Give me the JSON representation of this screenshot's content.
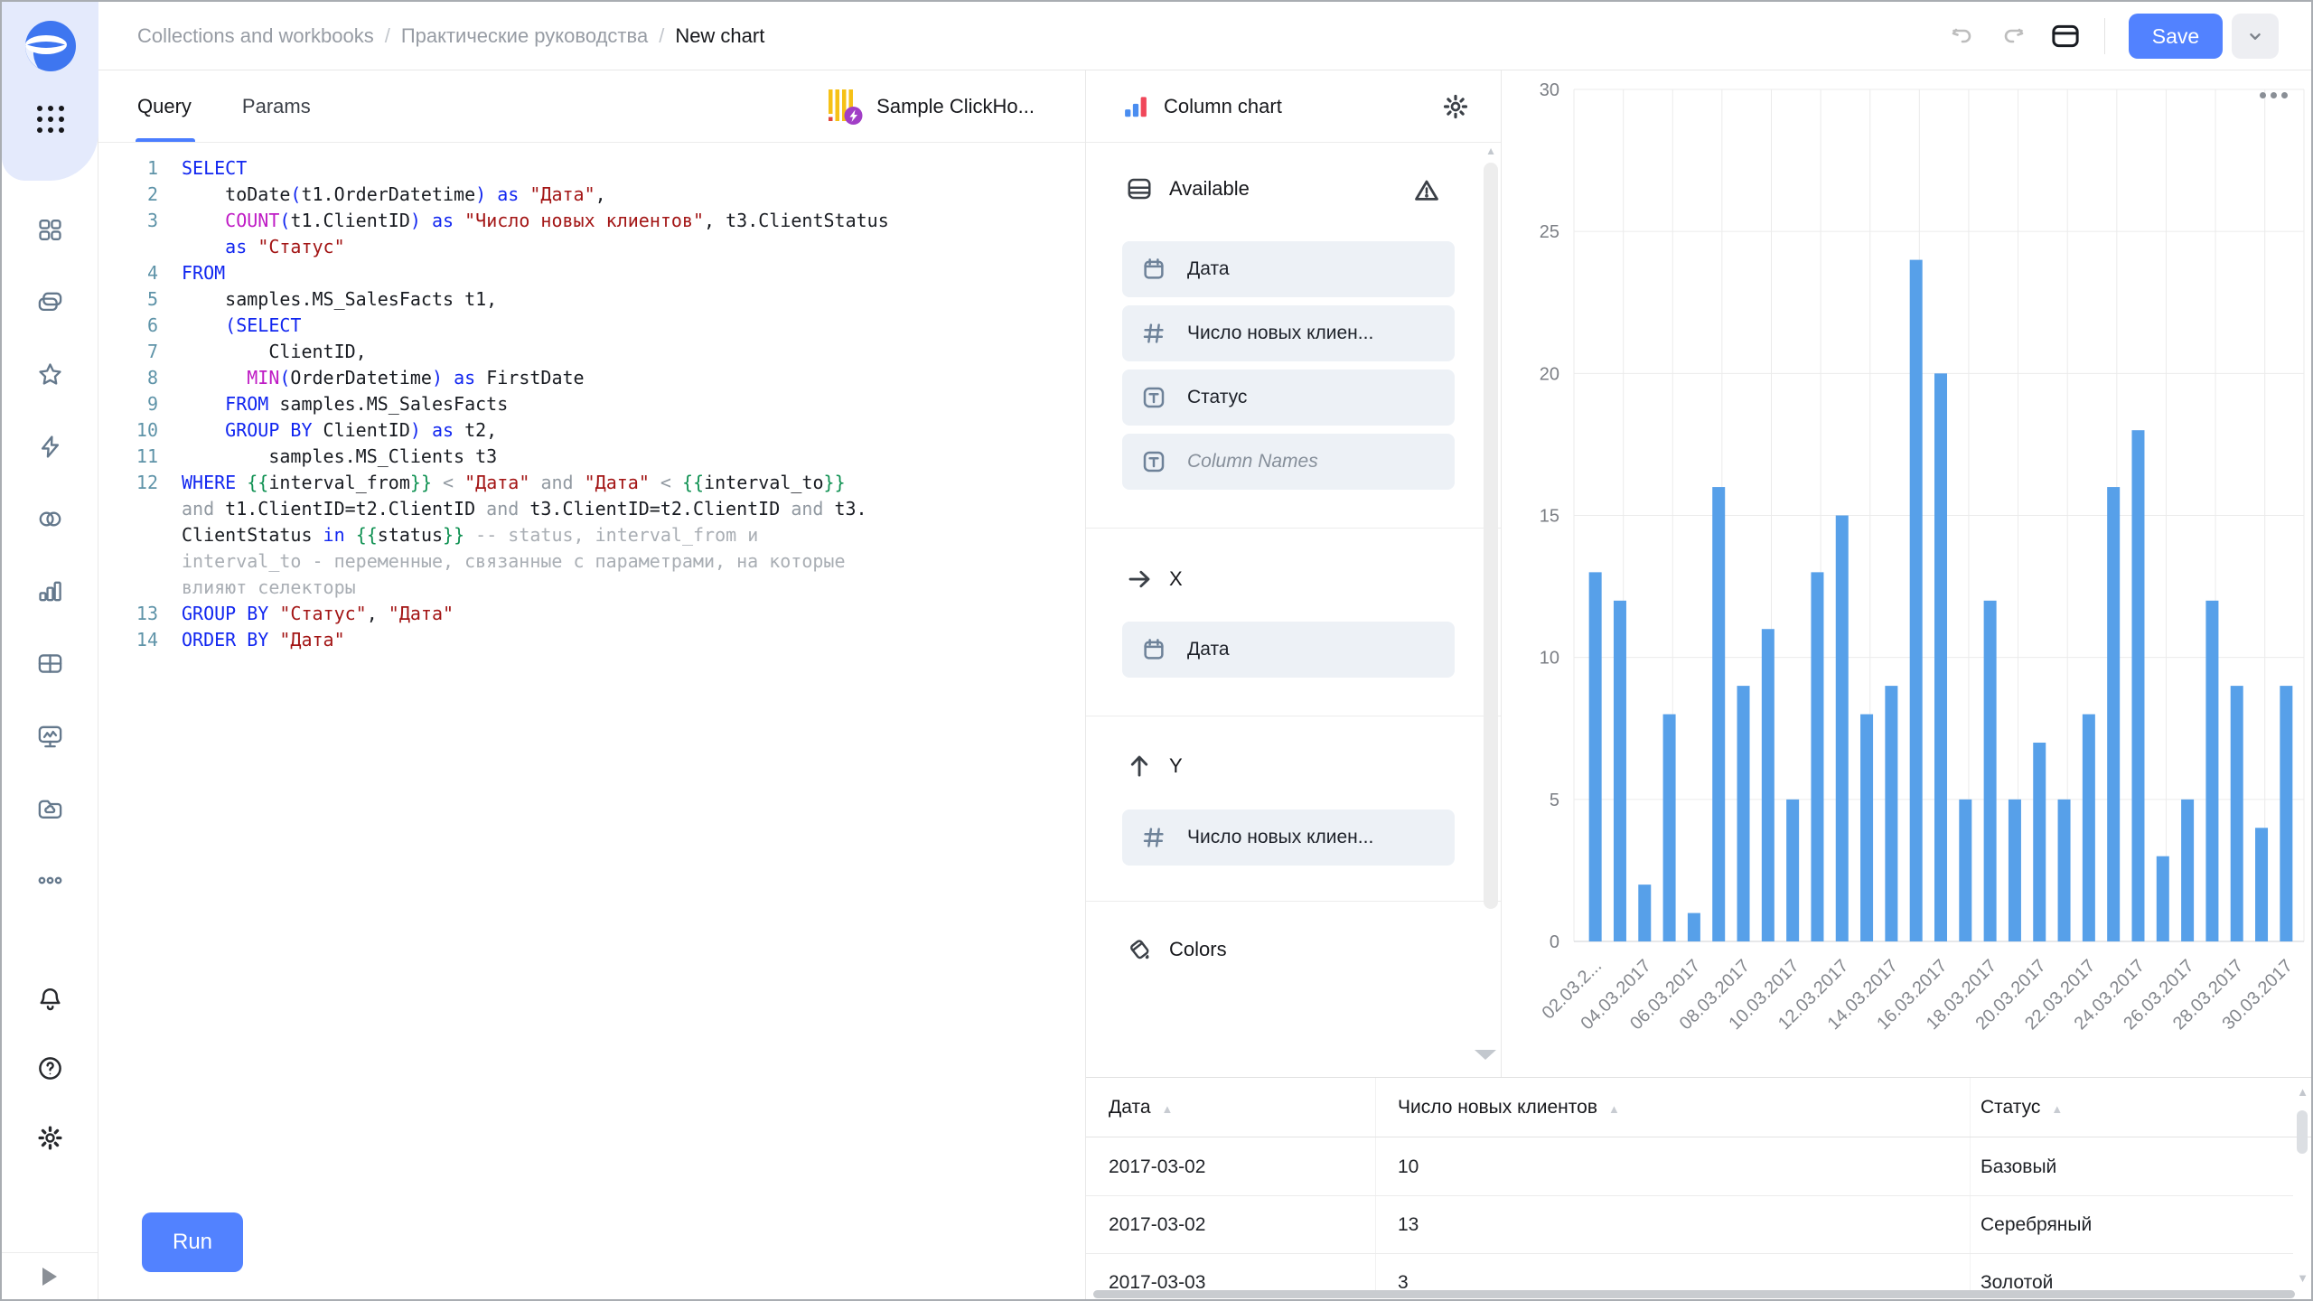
{
  "header": {
    "breadcrumb": [
      "Collections and workbooks",
      "Практические руководства",
      "New chart"
    ],
    "separator": "/",
    "save_label": "Save"
  },
  "sidebar": {
    "icons": [
      "datalens-logo",
      "app-grid",
      "tiles",
      "collections",
      "favorites",
      "connections",
      "datasets",
      "charts",
      "tables",
      "dashboards",
      "storage",
      "more",
      "notifications",
      "help",
      "settings",
      "expand"
    ]
  },
  "query_panel": {
    "tabs": {
      "query": "Query",
      "params": "Params"
    },
    "dataset_label": "Sample ClickHo...",
    "run_label": "Run"
  },
  "editor": {
    "rows": [
      {
        "n": "1",
        "s": [
          {
            "t": "SELECT",
            "c": "kw"
          }
        ]
      },
      {
        "n": "2",
        "s": [
          {
            "t": "    "
          },
          {
            "t": "toDate"
          },
          {
            "t": "(",
            "c": "pr"
          },
          {
            "t": "t1.OrderDatetime"
          },
          {
            "t": ")",
            "c": "pr"
          },
          {
            "t": " "
          },
          {
            "t": "as",
            "c": "kw"
          },
          {
            "t": " "
          },
          {
            "t": "\"Дата\"",
            "c": "st"
          },
          {
            "t": ","
          }
        ]
      },
      {
        "n": "3",
        "s": [
          {
            "t": "    "
          },
          {
            "t": "COUNT",
            "c": "fn"
          },
          {
            "t": "(",
            "c": "pr"
          },
          {
            "t": "t1.ClientID",
            "c": ""
          },
          {
            "t": ")",
            "c": "pr"
          },
          {
            "t": " "
          },
          {
            "t": "as",
            "c": "kw"
          },
          {
            "t": " "
          },
          {
            "t": "\"Число новых клиентов\"",
            "c": "st"
          },
          {
            "t": ", t3.ClientStatus"
          }
        ]
      },
      {
        "n": "",
        "s": [
          {
            "t": "    "
          },
          {
            "t": "as",
            "c": "kw"
          },
          {
            "t": " "
          },
          {
            "t": "\"Статус\"",
            "c": "st"
          }
        ]
      },
      {
        "n": "4",
        "s": [
          {
            "t": "FROM",
            "c": "kw"
          }
        ]
      },
      {
        "n": "5",
        "s": [
          {
            "t": "    samples.MS_SalesFacts t1,"
          }
        ]
      },
      {
        "n": "6",
        "s": [
          {
            "t": "    "
          },
          {
            "t": "(",
            "c": "pr"
          },
          {
            "t": "SELECT",
            "c": "kw"
          }
        ]
      },
      {
        "n": "7",
        "s": [
          {
            "t": "        ClientID,"
          }
        ]
      },
      {
        "n": "8",
        "s": [
          {
            "t": "      "
          },
          {
            "t": "MIN",
            "c": "fn"
          },
          {
            "t": "(",
            "c": "pr"
          },
          {
            "t": "OrderDatetime"
          },
          {
            "t": ")",
            "c": "pr"
          },
          {
            "t": " "
          },
          {
            "t": "as",
            "c": "kw"
          },
          {
            "t": " FirstDate"
          }
        ]
      },
      {
        "n": "9",
        "s": [
          {
            "t": "    "
          },
          {
            "t": "FROM",
            "c": "kw"
          },
          {
            "t": " samples.MS_SalesFacts"
          }
        ]
      },
      {
        "n": "10",
        "s": [
          {
            "t": "    "
          },
          {
            "t": "GROUP BY",
            "c": "kw"
          },
          {
            "t": " ClientID"
          },
          {
            "t": ")",
            "c": "pr"
          },
          {
            "t": " "
          },
          {
            "t": "as",
            "c": "kw"
          },
          {
            "t": " t2,"
          }
        ]
      },
      {
        "n": "11",
        "s": [
          {
            "t": "        samples.MS_Clients t3"
          }
        ]
      },
      {
        "n": "12",
        "s": [
          {
            "t": "WHERE",
            "c": "kw"
          },
          {
            "t": " "
          },
          {
            "t": "{{",
            "c": "br"
          },
          {
            "t": "interval_from"
          },
          {
            "t": "}}",
            "c": "br"
          },
          {
            "t": " "
          },
          {
            "t": "<",
            "c": "op"
          },
          {
            "t": " "
          },
          {
            "t": "\"Дата\"",
            "c": "st"
          },
          {
            "t": " "
          },
          {
            "t": "and",
            "c": "op"
          },
          {
            "t": " "
          },
          {
            "t": "\"Дата\"",
            "c": "st"
          },
          {
            "t": " "
          },
          {
            "t": "<",
            "c": "op"
          },
          {
            "t": " "
          },
          {
            "t": "{{",
            "c": "br"
          },
          {
            "t": "interval_to"
          },
          {
            "t": "}}",
            "c": "br"
          }
        ]
      },
      {
        "n": "",
        "s": [
          {
            "t": "and",
            "c": "op"
          },
          {
            "t": " t1.ClientID=t2.ClientID "
          },
          {
            "t": "and",
            "c": "op"
          },
          {
            "t": " t3.ClientID=t2.ClientID "
          },
          {
            "t": "and",
            "c": "op"
          },
          {
            "t": " t3."
          }
        ]
      },
      {
        "n": "",
        "s": [
          {
            "t": "ClientStatus "
          },
          {
            "t": "in",
            "c": "kw"
          },
          {
            "t": " "
          },
          {
            "t": "{{",
            "c": "br"
          },
          {
            "t": "status"
          },
          {
            "t": "}}",
            "c": "br"
          },
          {
            "t": " "
          },
          {
            "t": "-- status, interval_from и",
            "c": "cm"
          }
        ]
      },
      {
        "n": "",
        "s": [
          {
            "t": "interval_to - переменные, связанные с параметрами, на которые",
            "c": "cm"
          }
        ]
      },
      {
        "n": "",
        "s": [
          {
            "t": "влияют селекторы",
            "c": "cm"
          }
        ]
      },
      {
        "n": "13",
        "s": [
          {
            "t": "GROUP BY",
            "c": "kw"
          },
          {
            "t": " "
          },
          {
            "t": "\"Статус\"",
            "c": "st"
          },
          {
            "t": ", "
          },
          {
            "t": "\"Дата\"",
            "c": "st"
          }
        ]
      },
      {
        "n": "14",
        "s": [
          {
            "t": "ORDER BY",
            "c": "kw"
          },
          {
            "t": " "
          },
          {
            "t": "\"Дата\"",
            "c": "st"
          }
        ]
      }
    ]
  },
  "settings": {
    "title": "Column chart",
    "available": {
      "label": "Available",
      "fields": [
        {
          "label": "Дата",
          "type": "date"
        },
        {
          "label": "Число новых клиен...",
          "type": "number"
        },
        {
          "label": "Статус",
          "type": "string"
        },
        {
          "label": "Column Names",
          "type": "string",
          "placeholder": true
        }
      ]
    },
    "x": {
      "label": "X",
      "field": "Дата"
    },
    "y": {
      "label": "Y",
      "field": "Число новых клиен..."
    },
    "colors": {
      "label": "Colors"
    }
  },
  "chart_data": {
    "type": "bar",
    "title": "",
    "xlabel": "",
    "ylabel": "",
    "x": [
      "02.03.2017",
      "03.03.2017",
      "04.03.2017",
      "05.03.2017",
      "06.03.2017",
      "07.03.2017",
      "08.03.2017",
      "09.03.2017",
      "10.03.2017",
      "11.03.2017",
      "12.03.2017",
      "13.03.2017",
      "14.03.2017",
      "15.03.2017",
      "16.03.2017",
      "17.03.2017",
      "18.03.2017",
      "19.03.2017",
      "20.03.2017",
      "21.03.2017",
      "22.03.2017",
      "23.03.2017",
      "24.03.2017",
      "25.03.2017",
      "26.03.2017",
      "27.03.2017",
      "28.03.2017",
      "29.03.2017",
      "30.03.2017"
    ],
    "values": [
      13,
      12,
      2,
      8,
      1,
      16,
      9,
      11,
      5,
      13,
      15,
      8,
      9,
      24,
      20,
      5,
      12,
      5,
      7,
      5,
      8,
      16,
      18,
      3,
      5,
      12,
      9,
      4,
      9
    ],
    "ylim": [
      0,
      30
    ],
    "yticks": [
      0,
      5,
      10,
      15,
      20,
      25,
      30
    ],
    "x_tick_labels": [
      "02.03.2...",
      "04.03.2017",
      "06.03.2017",
      "08.03.2017",
      "10.03.2017",
      "12.03.2017",
      "14.03.2017",
      "16.03.2017",
      "18.03.2017",
      "20.03.2017",
      "22.03.2017",
      "24.03.2017",
      "26.03.2017",
      "28.03.2017",
      "30.03.2017"
    ],
    "bar_color": "#57a0e9",
    "grid": true,
    "legend": false
  },
  "table": {
    "columns": [
      "Дата",
      "Число новых клиентов",
      "Статус"
    ],
    "rows": [
      [
        "2017-03-02",
        "10",
        "Базовый"
      ],
      [
        "2017-03-02",
        "13",
        "Серебряный"
      ],
      [
        "2017-03-03",
        "3",
        "Золотой"
      ]
    ]
  }
}
